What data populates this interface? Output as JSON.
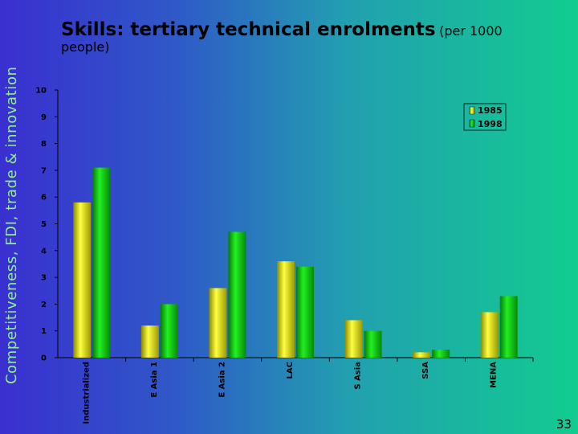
{
  "slide": {
    "side_title": "Competitiveness, FDI, trade & innovation",
    "title_main": "Skills: tertiary technical enrolments",
    "title_sub_a": "(per 1000",
    "title_sub_b": "people)",
    "page_number": "33"
  },
  "colors": {
    "series_1985": "#e4e400",
    "series_1998": "#12c812"
  },
  "chart_data": {
    "type": "bar",
    "categories": [
      "Industrialized",
      "E Asia 1",
      "E Asia 2",
      "LAC",
      "S Asia",
      "SSA",
      "MENA"
    ],
    "series": [
      {
        "name": "1985",
        "values": [
          5.8,
          1.2,
          2.6,
          3.6,
          1.4,
          0.2,
          1.7
        ]
      },
      {
        "name": "1998",
        "values": [
          7.1,
          2.0,
          4.7,
          3.4,
          1.0,
          0.3,
          2.3
        ]
      }
    ],
    "ylim": [
      0,
      10
    ],
    "yticks": [
      "0",
      "1",
      "2",
      "3",
      "4",
      "5",
      "6",
      "7",
      "8",
      "9",
      "10"
    ],
    "grid": false,
    "legend": "top-right"
  }
}
